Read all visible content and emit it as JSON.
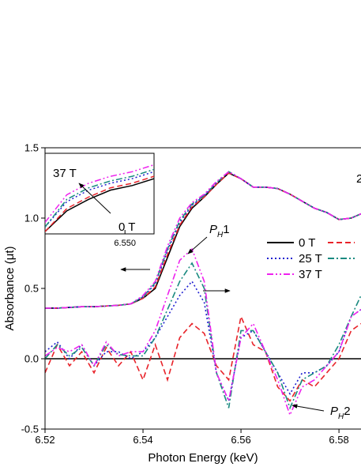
{
  "chart_data": [
    {
      "type": "line",
      "xlabel": "Photon Energy (keV)",
      "ylabel": "Absorbance (μt)",
      "x": [
        6.52,
        6.5225,
        6.525,
        6.5275,
        6.53,
        6.5325,
        6.535,
        6.5375,
        6.54,
        6.5425,
        6.545,
        6.5475,
        6.55,
        6.5525,
        6.555,
        6.5575,
        6.56,
        6.5625,
        6.565,
        6.5675,
        6.57,
        6.5725,
        6.575,
        6.5775,
        6.58,
        6.5825,
        6.5845
      ],
      "xlim": [
        6.52,
        6.5845
      ],
      "xticks": [
        6.52,
        6.54,
        6.56,
        6.58
      ],
      "ylim": [
        -0.5,
        1.5
      ],
      "yticks": [
        -0.5,
        {
          "value": 0.0,
          "label": "0.0"
        },
        0.5,
        {
          "value": 1.0,
          "label": "1.0"
        },
        1.5
      ],
      "series": [
        {
          "name": "0 T",
          "color": "#000000",
          "style": "solid",
          "values": [
            0.36,
            0.36,
            0.365,
            0.37,
            0.37,
            0.375,
            0.38,
            0.39,
            0.43,
            0.5,
            0.72,
            0.94,
            1.07,
            1.15,
            1.24,
            1.32,
            1.28,
            1.22,
            1.22,
            1.21,
            1.17,
            1.12,
            1.07,
            1.04,
            0.99,
            1.0,
            1.03
          ]
        },
        {
          "color": "#e8232a",
          "style": "dashed",
          "values": [
            0.36,
            0.36,
            0.365,
            0.37,
            0.37,
            0.375,
            0.38,
            0.39,
            0.43,
            0.51,
            0.74,
            0.95,
            1.08,
            1.15,
            1.24,
            1.32,
            1.28,
            1.22,
            1.22,
            1.21,
            1.17,
            1.12,
            1.07,
            1.04,
            0.99,
            1.0,
            1.03
          ]
        },
        {
          "name": "25 T",
          "color": "#1f1fd0",
          "style": "dotted",
          "values": [
            0.36,
            0.36,
            0.365,
            0.37,
            0.37,
            0.375,
            0.38,
            0.39,
            0.44,
            0.53,
            0.77,
            0.97,
            1.09,
            1.16,
            1.25,
            1.33,
            1.28,
            1.22,
            1.22,
            1.21,
            1.17,
            1.12,
            1.07,
            1.04,
            0.99,
            1.0,
            1.03
          ]
        },
        {
          "color": "#1a8a80",
          "style": "dashdot",
          "values": [
            0.36,
            0.36,
            0.365,
            0.37,
            0.37,
            0.375,
            0.38,
            0.39,
            0.44,
            0.54,
            0.78,
            0.98,
            1.1,
            1.16,
            1.25,
            1.33,
            1.28,
            1.22,
            1.22,
            1.21,
            1.17,
            1.12,
            1.07,
            1.04,
            0.99,
            1.0,
            1.03
          ]
        },
        {
          "name": "37 T",
          "color": "#ee22ee",
          "style": "dashdotdot",
          "values": [
            0.36,
            0.36,
            0.365,
            0.37,
            0.37,
            0.375,
            0.38,
            0.39,
            0.45,
            0.55,
            0.8,
            1.0,
            1.11,
            1.17,
            1.26,
            1.33,
            1.28,
            1.22,
            1.22,
            1.21,
            1.17,
            1.12,
            1.07,
            1.04,
            0.99,
            1.0,
            1.03
          ]
        }
      ],
      "difference_series": [
        {
          "color": "#000000",
          "style": "solid",
          "values": [
            0,
            0,
            0,
            0,
            0,
            0,
            0,
            0,
            0,
            0,
            0,
            0,
            0,
            0,
            0,
            0,
            0,
            0,
            0,
            0,
            0,
            0,
            0,
            0,
            0,
            0,
            0
          ]
        },
        {
          "color": "#e8232a",
          "style": "dashed",
          "values": [
            -0.1,
            0.1,
            -0.05,
            0.05,
            -0.1,
            0.08,
            -0.05,
            0.05,
            -0.15,
            0.1,
            -0.15,
            0.15,
            0.25,
            0.18,
            -0.05,
            -0.15,
            0.3,
            0.1,
            0.05,
            -0.2,
            -0.3,
            -0.15,
            -0.2,
            -0.1,
            0,
            0.2,
            0.25
          ]
        },
        {
          "color": "#1f1fd0",
          "style": "dotted",
          "values": [
            0.05,
            0.12,
            0.0,
            0.1,
            -0.05,
            0.05,
            0.05,
            0.0,
            0.05,
            0.15,
            0.3,
            0.45,
            0.55,
            0.4,
            -0.1,
            -0.3,
            0.15,
            0.2,
            0.05,
            -0.1,
            -0.25,
            -0.1,
            -0.1,
            -0.05,
            0.05,
            0.3,
            0.35
          ]
        },
        {
          "color": "#1a8a80",
          "style": "dashdot",
          "values": [
            0.0,
            0.1,
            0.02,
            0.08,
            -0.05,
            0.1,
            0.03,
            0.02,
            0.02,
            0.15,
            0.35,
            0.55,
            0.68,
            0.5,
            -0.1,
            -0.35,
            0.2,
            0.2,
            0.05,
            -0.1,
            -0.35,
            -0.15,
            -0.1,
            -0.05,
            0.1,
            0.3,
            0.45
          ]
        },
        {
          "color": "#ee22ee",
          "style": "dashdotdot",
          "values": [
            0.02,
            0.08,
            0.05,
            0.1,
            -0.05,
            0.12,
            0.02,
            0.05,
            0.05,
            0.2,
            0.45,
            0.7,
            0.78,
            0.55,
            -0.1,
            -0.3,
            0.15,
            0.25,
            0.05,
            -0.15,
            -0.4,
            -0.2,
            -0.15,
            -0.05,
            0.05,
            0.3,
            0.35
          ]
        }
      ],
      "annotations": [
        {
          "main": "P",
          "sub": "H",
          "suffix": "1"
        },
        {
          "main": "P",
          "sub": "H",
          "suffix": "2"
        },
        {
          "text": "2"
        }
      ]
    },
    {
      "type": "line",
      "x": [
        6.5445,
        6.546,
        6.5475,
        6.549,
        6.5505,
        6.552
      ],
      "xlim": [
        6.5445,
        6.552
      ],
      "xticks": [
        {
          "value": 6.55,
          "label": "6.550"
        }
      ],
      "ylim": [
        0.85,
        1.2
      ],
      "series": [
        {
          "color": "#000000",
          "style": "solid",
          "values": [
            0.86,
            0.95,
            1.0,
            1.04,
            1.06,
            1.09
          ]
        },
        {
          "color": "#e8232a",
          "style": "dashed",
          "values": [
            0.86,
            0.96,
            1.01,
            1.05,
            1.07,
            1.1
          ]
        },
        {
          "color": "#1f1fd0",
          "style": "dotted",
          "values": [
            0.88,
            0.99,
            1.04,
            1.07,
            1.09,
            1.12
          ]
        },
        {
          "color": "#1a8a80",
          "style": "dashdot",
          "values": [
            0.88,
            1.0,
            1.05,
            1.08,
            1.1,
            1.13
          ]
        },
        {
          "color": "#ee22ee",
          "style": "dashdotdot",
          "values": [
            0.9,
            1.02,
            1.07,
            1.1,
            1.12,
            1.15
          ]
        }
      ],
      "annotations": [
        "37 T",
        "0 T"
      ]
    }
  ]
}
